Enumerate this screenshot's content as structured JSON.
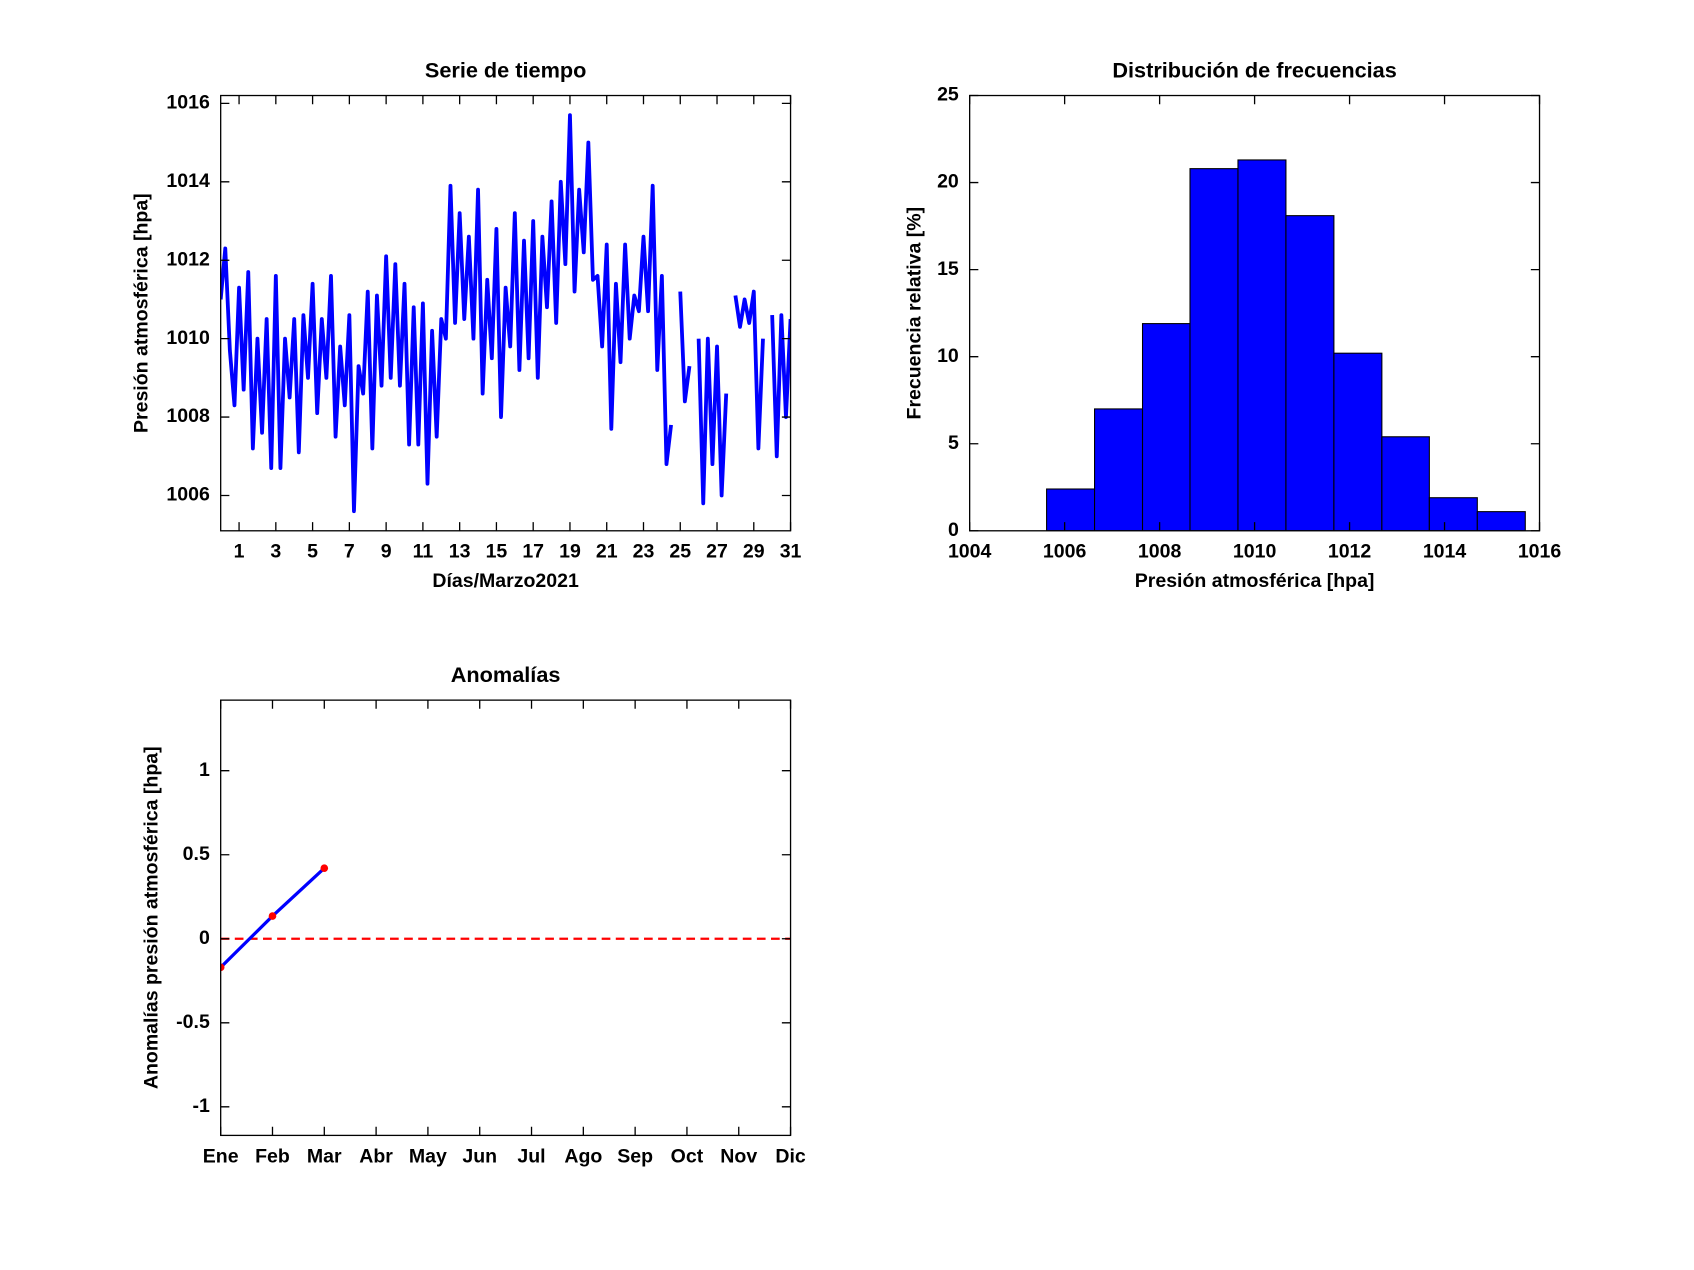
{
  "chart_data": [
    {
      "type": "line",
      "title": "Serie de tiempo",
      "xlabel": "Días/Marzo2021",
      "ylabel": "Presión atmosférica [hpa]",
      "xlim": [
        0,
        31
      ],
      "xticks": [
        1,
        3,
        5,
        7,
        9,
        11,
        13,
        15,
        17,
        19,
        21,
        23,
        25,
        27,
        29,
        31
      ],
      "ylim": [
        1005.1,
        1016.2
      ],
      "yticks": [
        1006,
        1008,
        1010,
        1012,
        1014,
        1016
      ],
      "x": [
        0,
        0.25,
        0.5,
        0.75,
        1,
        1.25,
        1.5,
        1.75,
        2,
        2.25,
        2.5,
        2.75,
        3,
        3.25,
        3.5,
        3.75,
        4,
        4.25,
        4.5,
        4.75,
        5,
        5.25,
        5.5,
        5.75,
        6,
        6.25,
        6.5,
        6.75,
        7,
        7.25,
        7.5,
        7.75,
        8,
        8.25,
        8.5,
        8.75,
        9,
        9.25,
        9.5,
        9.75,
        10,
        10.25,
        10.5,
        10.75,
        11,
        11.25,
        11.5,
        11.75,
        12,
        12.25,
        12.5,
        12.75,
        13,
        13.25,
        13.5,
        13.75,
        14,
        14.25,
        14.5,
        14.75,
        15,
        15.25,
        15.5,
        15.75,
        16,
        16.25,
        16.5,
        16.75,
        17,
        17.25,
        17.5,
        17.75,
        18,
        18.25,
        18.5,
        18.75,
        19,
        19.25,
        19.5,
        19.75,
        20,
        20.25,
        20.5,
        20.75,
        21,
        21.25,
        21.5,
        21.75,
        22,
        22.25,
        22.5,
        22.75,
        23,
        23.25,
        23.5,
        23.75,
        24,
        24.25,
        24.5,
        24.75,
        25,
        25.25,
        25.5,
        25.75,
        26,
        26.25,
        26.5,
        26.75,
        27,
        27.25,
        27.5,
        27.75,
        28,
        28.25,
        28.5,
        28.75,
        29,
        29.25,
        29.5,
        29.75,
        30,
        30.25,
        30.5,
        30.75,
        31
      ],
      "series": [
        {
          "name": "Presión",
          "color": "#0000ff",
          "values": [
            1011,
            1012.3,
            1009.7,
            1008.3,
            1011.3,
            1008.7,
            1011.7,
            1007.2,
            1010,
            1007.6,
            1010.5,
            1006.7,
            1011.6,
            1006.7,
            1010,
            1008.5,
            1010.5,
            1007.1,
            1010.6,
            1009,
            1011.4,
            1008.1,
            1010.5,
            1009,
            1011.6,
            1007.5,
            1009.8,
            1008.3,
            1010.6,
            1005.6,
            1009.3,
            1008.6,
            1011.2,
            1007.2,
            1011.1,
            1008.8,
            1012.1,
            1009,
            1011.9,
            1008.8,
            1011.4,
            1007.3,
            1010.8,
            1007.3,
            1010.9,
            1006.3,
            1010.2,
            1007.5,
            1010.5,
            1010,
            1013.9,
            1010.4,
            1013.2,
            1010.5,
            1012.6,
            1010,
            1013.8,
            1008.6,
            1011.5,
            1009.5,
            1012.8,
            1008,
            1011.3,
            1009.8,
            1013.2,
            1009.2,
            1012.5,
            1009.5,
            1013,
            1009,
            1012.6,
            1010.8,
            1013.5,
            1010.4,
            1014,
            1011.9,
            1015.7,
            1011.2,
            1013.8,
            1012.2,
            1015,
            1011.5,
            1011.6,
            1009.8,
            1012.4,
            1007.7,
            1011.4,
            1009.4,
            1012.4,
            1010,
            1011.1,
            1010.7,
            1012.6,
            1010.7,
            1013.9,
            1009.2,
            1011.6,
            1006.8,
            1007.8,
            null,
            1011.2,
            1008.4,
            1009.3,
            null,
            1010,
            1005.8,
            1010,
            1006.8,
            1009.8,
            1006,
            1008.6,
            null,
            1011.1,
            1010.3,
            1011,
            1010.4,
            1011.2,
            1007.2,
            1010,
            null,
            1010.6,
            1007,
            1010.6,
            1008,
            1010.5
          ]
        }
      ]
    },
    {
      "type": "histogram",
      "title": "Distribución de frecuencias",
      "xlabel": "Presión atmosférica [hpa]",
      "ylabel": "Frecuencia relativa [%]",
      "xlim": [
        1004,
        1016
      ],
      "xticks": [
        1004,
        1006,
        1008,
        1010,
        1012,
        1014,
        1016
      ],
      "ylim": [
        0,
        25
      ],
      "yticks": [
        0,
        5,
        10,
        15,
        20,
        25
      ],
      "bins": [
        1005.62,
        1006.63,
        1007.64,
        1008.64,
        1009.65,
        1010.66,
        1011.67,
        1012.68,
        1013.68,
        1014.69,
        1015.7
      ],
      "values": [
        2.4,
        7.0,
        11.9,
        20.8,
        21.3,
        18.1,
        10.2,
        5.4,
        1.9,
        1.1
      ],
      "color": "#0000ff",
      "edgecolor": "#000000"
    },
    {
      "type": "line",
      "title": "Anomalías",
      "ylabel": "Anomalías presión atmosférica [hpa]",
      "categories": [
        "Ene",
        "Feb",
        "Mar",
        "Abr",
        "May",
        "Jun",
        "Jul",
        "Ago",
        "Sep",
        "Oct",
        "Nov",
        "Dic"
      ],
      "ylim": [
        -1.17,
        1.42
      ],
      "yticks": [
        -1,
        -0.5,
        0,
        0.5,
        1
      ],
      "series": [
        {
          "name": "Anomalía",
          "color": "#0000ff",
          "marker_color": "#ff0000",
          "values": [
            -0.17,
            0.135,
            0.42,
            null,
            null,
            null,
            null,
            null,
            null,
            null,
            null,
            null
          ]
        }
      ],
      "hline": {
        "value": 0,
        "color": "#ff0000",
        "style": "dashed"
      }
    }
  ]
}
